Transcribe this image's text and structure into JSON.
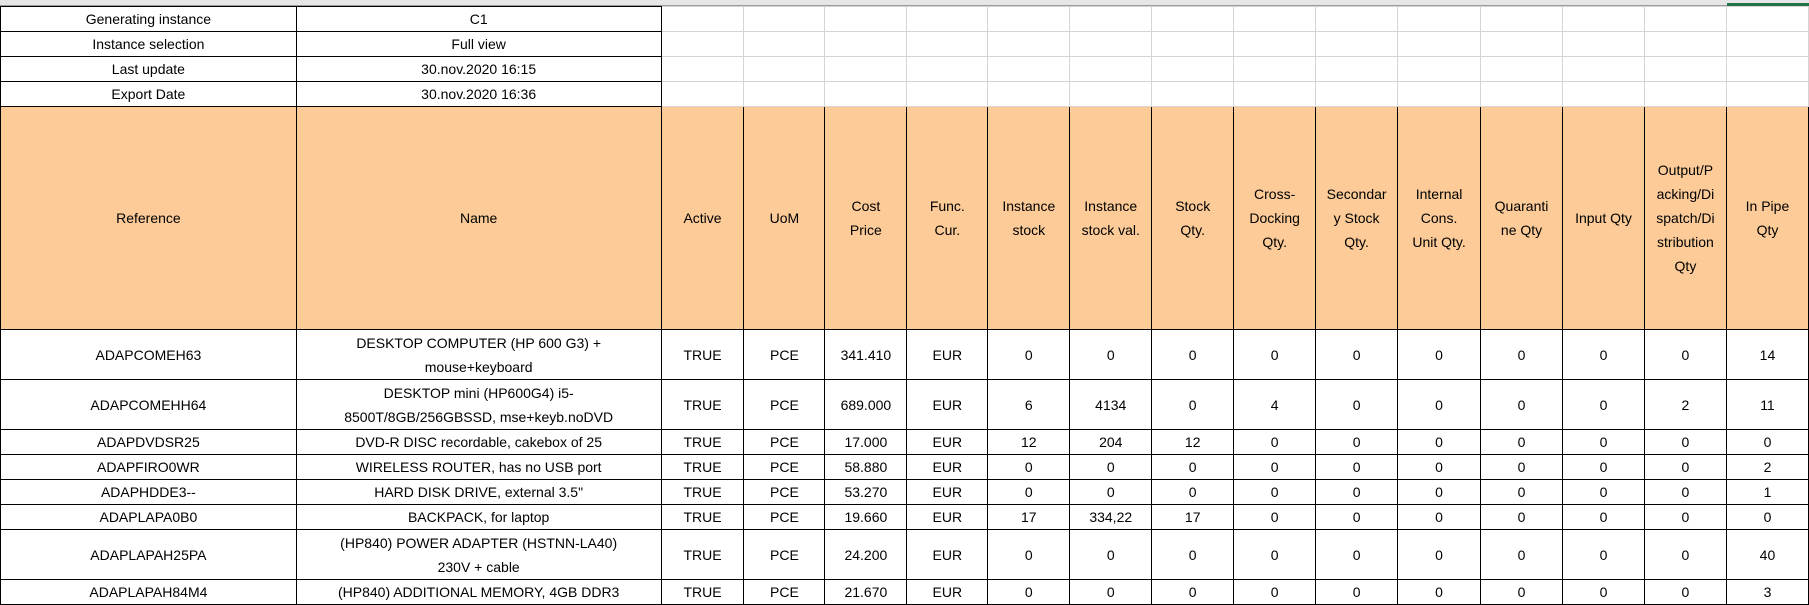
{
  "meta": [
    {
      "label": "Generating instance",
      "value": "C1"
    },
    {
      "label": "Instance selection",
      "value": "Full view"
    },
    {
      "label": "Last update",
      "value": "30.nov.2020 16:15"
    },
    {
      "label": "Export Date",
      "value": "30.nov.2020 16:36"
    }
  ],
  "columns": [
    "Reference",
    "Name",
    "Active",
    "UoM",
    "Cost\nPrice",
    "Func.\nCur.",
    "Instance\nstock",
    "Instance\nstock val.",
    "Stock\nQty.",
    "Cross-\nDocking\nQty.",
    "Secondar\ny Stock\nQty.",
    "Internal\nCons.\nUnit Qty.",
    "Quaranti\nne Qty",
    "Input Qty",
    "Output/P\nacking/Di\nspatch/Di\nstribution\nQty",
    "In Pipe\nQty"
  ],
  "rows": [
    [
      "ADAPCOMEH63",
      "DESKTOP COMPUTER (HP 600 G3) +\nmouse+keyboard",
      "TRUE",
      "PCE",
      "341.410",
      "EUR",
      "0",
      "0",
      "0",
      "0",
      "0",
      "0",
      "0",
      "0",
      "0",
      "14"
    ],
    [
      "ADAPCOMEHH64",
      "DESKTOP mini (HP600G4) i5-\n8500T/8GB/256GBSSD, mse+keyb.noDVD",
      "TRUE",
      "PCE",
      "689.000",
      "EUR",
      "6",
      "4134",
      "0",
      "4",
      "0",
      "0",
      "0",
      "0",
      "2",
      "11"
    ],
    [
      "ADAPDVDSR25",
      "DVD-R DISC recordable, cakebox of 25",
      "TRUE",
      "PCE",
      "17.000",
      "EUR",
      "12",
      "204",
      "12",
      "0",
      "0",
      "0",
      "0",
      "0",
      "0",
      "0"
    ],
    [
      "ADAPFIRO0WR",
      "WIRELESS ROUTER, has no USB port",
      "TRUE",
      "PCE",
      "58.880",
      "EUR",
      "0",
      "0",
      "0",
      "0",
      "0",
      "0",
      "0",
      "0",
      "0",
      "2"
    ],
    [
      "ADAPHDDE3--",
      "HARD DISK DRIVE, external 3.5\"",
      "TRUE",
      "PCE",
      "53.270",
      "EUR",
      "0",
      "0",
      "0",
      "0",
      "0",
      "0",
      "0",
      "0",
      "0",
      "1"
    ],
    [
      "ADAPLAPA0B0",
      "BACKPACK, for laptop",
      "TRUE",
      "PCE",
      "19.660",
      "EUR",
      "17",
      "334,22",
      "17",
      "0",
      "0",
      "0",
      "0",
      "0",
      "0",
      "0"
    ],
    [
      "ADAPLAPAH25PA",
      "(HP840) POWER ADAPTER (HSTNN-LA40)\n230V + cable",
      "TRUE",
      "PCE",
      "24.200",
      "EUR",
      "0",
      "0",
      "0",
      "0",
      "0",
      "0",
      "0",
      "0",
      "0",
      "40"
    ],
    [
      "ADAPLAPAH84M4",
      "(HP840) ADDITIONAL MEMORY, 4GB DDR3",
      "TRUE",
      "PCE",
      "21.670",
      "EUR",
      "0",
      "0",
      "0",
      "0",
      "0",
      "0",
      "0",
      "0",
      "0",
      "3"
    ]
  ],
  "colors": {
    "header_fill": "#fccb98",
    "selected_column": "#217346"
  }
}
